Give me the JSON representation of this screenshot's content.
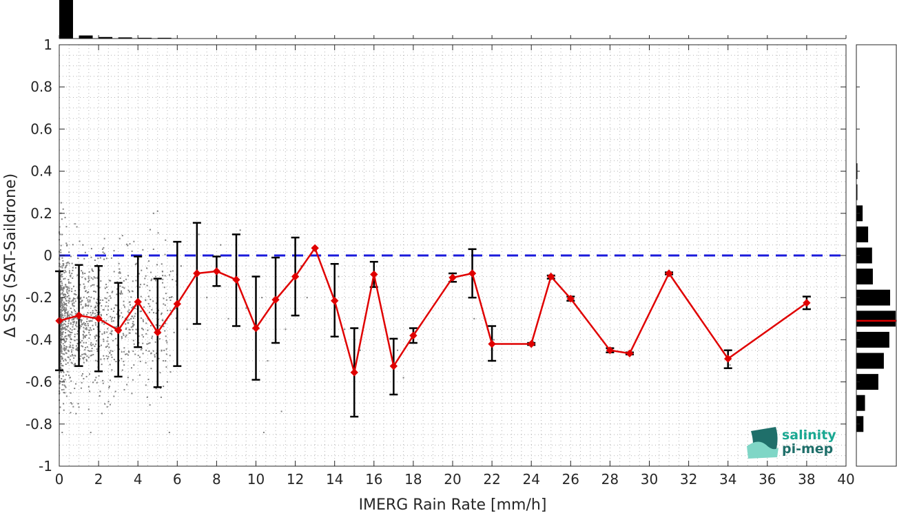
{
  "chart_data": {
    "type": "line",
    "xlabel": "IMERG Rain Rate [mm/h]",
    "ylabel": "Δ SSS (SAT-Saildrone)",
    "xlim": [
      0,
      40
    ],
    "ylim": [
      -1,
      1
    ],
    "xticks": [
      0,
      2,
      4,
      6,
      8,
      10,
      12,
      14,
      16,
      18,
      20,
      22,
      24,
      26,
      28,
      30,
      32,
      34,
      36,
      38,
      40
    ],
    "yticks": [
      -1,
      -0.8,
      -0.6,
      -0.4,
      -0.2,
      0,
      0.2,
      0.4,
      0.6,
      0.8,
      1
    ],
    "yticklabels": [
      "-1",
      "-0.8",
      "-0.6",
      "-0.4",
      "-0.2",
      "0",
      "0.2",
      "0.4",
      "0.6",
      "0.8",
      "1"
    ],
    "grid": true,
    "reference_line": {
      "y": 0,
      "color": "#1a1adb",
      "style": "dashed"
    },
    "mean_series": {
      "color": "#e00000",
      "marker": "diamond",
      "x": [
        0,
        1,
        2,
        3,
        4,
        5,
        6,
        7,
        8,
        9,
        10,
        11,
        12,
        13,
        14,
        15,
        16,
        17,
        18,
        20,
        21,
        22,
        24,
        25,
        26,
        28,
        29,
        31,
        34,
        38
      ],
      "y": [
        -0.31,
        -0.285,
        -0.3,
        -0.355,
        -0.22,
        -0.365,
        -0.23,
        -0.085,
        -0.075,
        -0.115,
        -0.345,
        -0.21,
        -0.1,
        0.035,
        -0.215,
        -0.555,
        -0.09,
        -0.525,
        -0.38,
        -0.105,
        -0.085,
        -0.42,
        -0.42,
        -0.1,
        -0.205,
        -0.45,
        -0.465,
        -0.085,
        -0.49,
        -0.225
      ],
      "err_low": [
        -0.545,
        -0.525,
        -0.55,
        -0.575,
        -0.435,
        -0.625,
        -0.525,
        -0.325,
        -0.145,
        -0.335,
        -0.59,
        -0.415,
        -0.285,
        0.035,
        -0.385,
        -0.765,
        -0.15,
        -0.66,
        -0.415,
        -0.125,
        -0.2,
        -0.5,
        -0.425,
        -0.11,
        -0.215,
        -0.46,
        -0.47,
        -0.09,
        -0.535,
        -0.255
      ],
      "err_high": [
        -0.075,
        -0.045,
        -0.05,
        -0.13,
        -0.005,
        -0.11,
        0.065,
        0.155,
        -0.005,
        0.1,
        -0.1,
        -0.01,
        0.085,
        0.035,
        -0.04,
        -0.345,
        -0.03,
        -0.395,
        -0.345,
        -0.085,
        0.03,
        -0.335,
        -0.415,
        -0.095,
        -0.195,
        -0.44,
        -0.46,
        -0.08,
        -0.45,
        -0.195
      ]
    },
    "scatter": {
      "color": "#808080",
      "description_points": [
        [
          0.1,
          0.25
        ],
        [
          0.2,
          0.22
        ],
        [
          0.3,
          0.18
        ],
        [
          0.05,
          0.1
        ],
        [
          0.4,
          0.05
        ],
        [
          0.15,
          -0.05
        ],
        [
          0.25,
          -0.15
        ],
        [
          0.35,
          -0.25
        ],
        [
          0.1,
          -0.35
        ],
        [
          0.45,
          -0.45
        ],
        [
          0.2,
          -0.55
        ],
        [
          0.3,
          -0.62
        ],
        [
          0.05,
          -0.72
        ],
        [
          0.15,
          -0.84
        ],
        [
          0.8,
          0.15
        ],
        [
          1.2,
          0.05
        ],
        [
          1.5,
          -0.1
        ],
        [
          1.1,
          -0.2
        ],
        [
          1.7,
          -0.3
        ],
        [
          0.9,
          -0.4
        ],
        [
          1.4,
          -0.5
        ],
        [
          1.9,
          -0.55
        ],
        [
          1.0,
          -0.72
        ],
        [
          1.5,
          -0.73
        ],
        [
          1.6,
          -0.84
        ],
        [
          2.3,
          0.08
        ],
        [
          2.6,
          -0.12
        ],
        [
          2.8,
          -0.25
        ],
        [
          2.5,
          -0.42
        ],
        [
          3.1,
          -0.18
        ],
        [
          3.4,
          -0.35
        ],
        [
          3.3,
          -0.52
        ],
        [
          3.7,
          0.02
        ],
        [
          4.1,
          -0.15
        ],
        [
          4.5,
          -0.3
        ],
        [
          4.8,
          0.2
        ],
        [
          5.0,
          0.21
        ],
        [
          4.9,
          -0.1
        ],
        [
          5.2,
          -0.45
        ],
        [
          5.5,
          -0.6
        ],
        [
          5.6,
          -0.84
        ],
        [
          6.2,
          -0.05
        ],
        [
          6.5,
          -0.35
        ],
        [
          7.1,
          0.1
        ],
        [
          7.5,
          -0.2
        ],
        [
          8.2,
          0.05
        ],
        [
          8.6,
          -0.3
        ],
        [
          9.2,
          0.12
        ],
        [
          9.5,
          -0.25
        ],
        [
          10.3,
          -0.2
        ],
        [
          10.6,
          -0.5
        ],
        [
          10.4,
          -0.84
        ],
        [
          11.1,
          0.0
        ],
        [
          11.5,
          -0.35
        ],
        [
          11.3,
          -0.74
        ],
        [
          12.3,
          -0.05
        ],
        [
          12.6,
          -0.2
        ],
        [
          14.2,
          -0.1
        ],
        [
          14.5,
          -0.35
        ],
        [
          15.3,
          -0.45
        ],
        [
          16.1,
          -0.15
        ],
        [
          17.2,
          -0.45
        ],
        [
          17.5,
          -0.58
        ],
        [
          18.1,
          -0.36
        ],
        [
          20.1,
          -0.1
        ],
        [
          21.0,
          -0.18
        ],
        [
          21.1,
          -0.3
        ],
        [
          22.1,
          -0.4
        ],
        [
          24.1,
          -0.41
        ],
        [
          34.1,
          -0.52
        ]
      ]
    },
    "top_histogram": {
      "bin_width": 0.7,
      "bins": [
        {
          "x": 0,
          "count": 100
        },
        {
          "x": 1,
          "count": 8
        },
        {
          "x": 2,
          "count": 4
        },
        {
          "x": 3,
          "count": 3
        },
        {
          "x": 4,
          "count": 2
        },
        {
          "x": 5,
          "count": 2
        }
      ]
    },
    "right_histogram": {
      "bin_width": 0.075,
      "bins": [
        {
          "y": 0.4,
          "count": 1
        },
        {
          "y": 0.3,
          "count": 1
        },
        {
          "y": 0.2,
          "count": 16
        },
        {
          "y": 0.1,
          "count": 30
        },
        {
          "y": 0.0,
          "count": 40
        },
        {
          "y": -0.1,
          "count": 42
        },
        {
          "y": -0.2,
          "count": 86
        },
        {
          "y": -0.3,
          "count": 100
        },
        {
          "y": -0.4,
          "count": 84
        },
        {
          "y": -0.5,
          "count": 70
        },
        {
          "y": -0.6,
          "count": 56
        },
        {
          "y": -0.7,
          "count": 22
        },
        {
          "y": -0.8,
          "count": 18
        }
      ],
      "median_marker": {
        "y": -0.31,
        "color": "#e00000"
      }
    },
    "colors": {
      "bars": "#000000",
      "errorbars": "#000000",
      "logo_teal": "#1aa892",
      "logo_dark": "#1f6f6a"
    }
  },
  "logo": {
    "line1": "salinity",
    "line2": "pi-mep"
  }
}
